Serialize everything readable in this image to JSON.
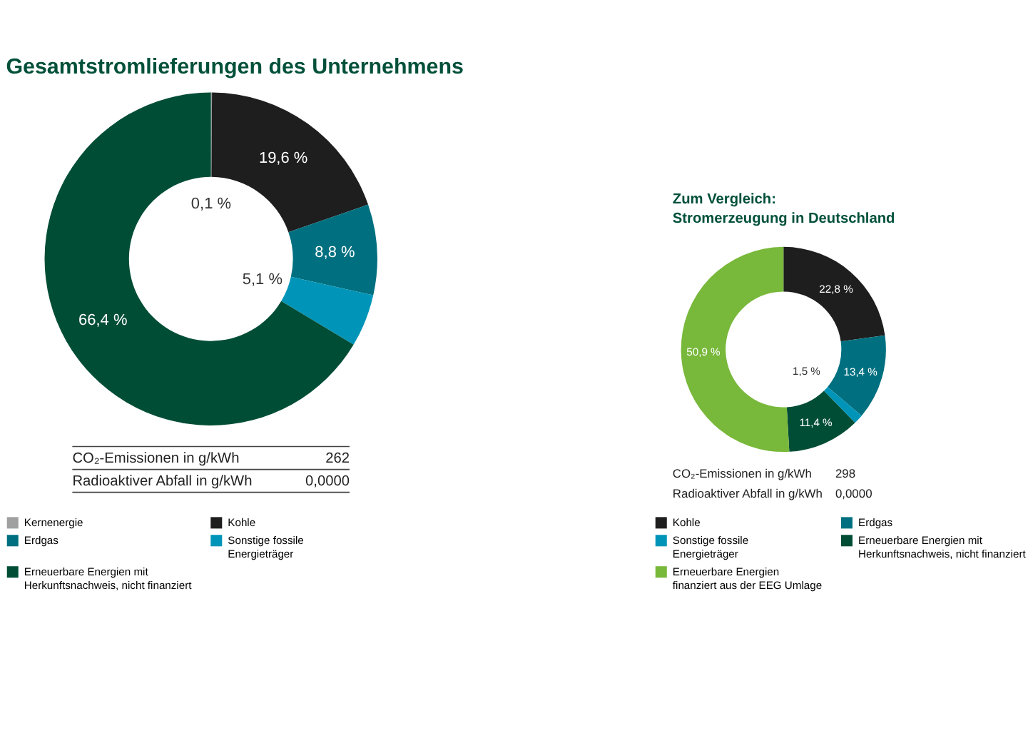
{
  "chart_data": [
    {
      "type": "donut",
      "title": "Gesamtstromlieferungen des Unternehmens",
      "categories": [
        "Kernenergie",
        "Kohle",
        "Erdgas",
        "Sonstige fossile Energieträger",
        "Erneuerbare Energien mit Herkunftsnachweis, nicht finanziert"
      ],
      "values": [
        0.1,
        19.6,
        8.8,
        5.1,
        66.4
      ],
      "colors": [
        "#a0a0a0",
        "#1e1e1e",
        "#007080",
        "#0095b8",
        "#004d36"
      ],
      "value_labels": [
        "0,1 %",
        "19,6 %",
        "8,8 %",
        "5,1 %",
        "66,4 %"
      ],
      "annotations": [
        "CO₂-Emissionen in g/kWh",
        "262",
        "Radioaktiver Abfall in g/kWh",
        "0,0000"
      ],
      "legend": "bottom"
    },
    {
      "type": "donut",
      "title": "Zum Vergleich:\nStromerzeugung in Deutschland",
      "categories": [
        "Kohle",
        "Erdgas",
        "Sonstige fossile Energieträger",
        "Erneuerbare Energien mit Herkunftsnachweis, nicht finanziert",
        "Erneuerbare Energien finanziert aus der EEG Umlage"
      ],
      "values": [
        22.8,
        13.4,
        1.5,
        11.4,
        50.9
      ],
      "colors": [
        "#1e1e1e",
        "#007080",
        "#0095b8",
        "#004d36",
        "#78b83a"
      ],
      "value_labels": [
        "22,8 %",
        "13,4 %",
        "1,5 %",
        "11,4 %",
        "50,9 %"
      ],
      "annotations": [
        "CO₂-Emissionen in g/kWh",
        "298",
        "Radioaktiver Abfall in g/kWh",
        "0,0000"
      ],
      "legend": "bottom"
    }
  ]
}
